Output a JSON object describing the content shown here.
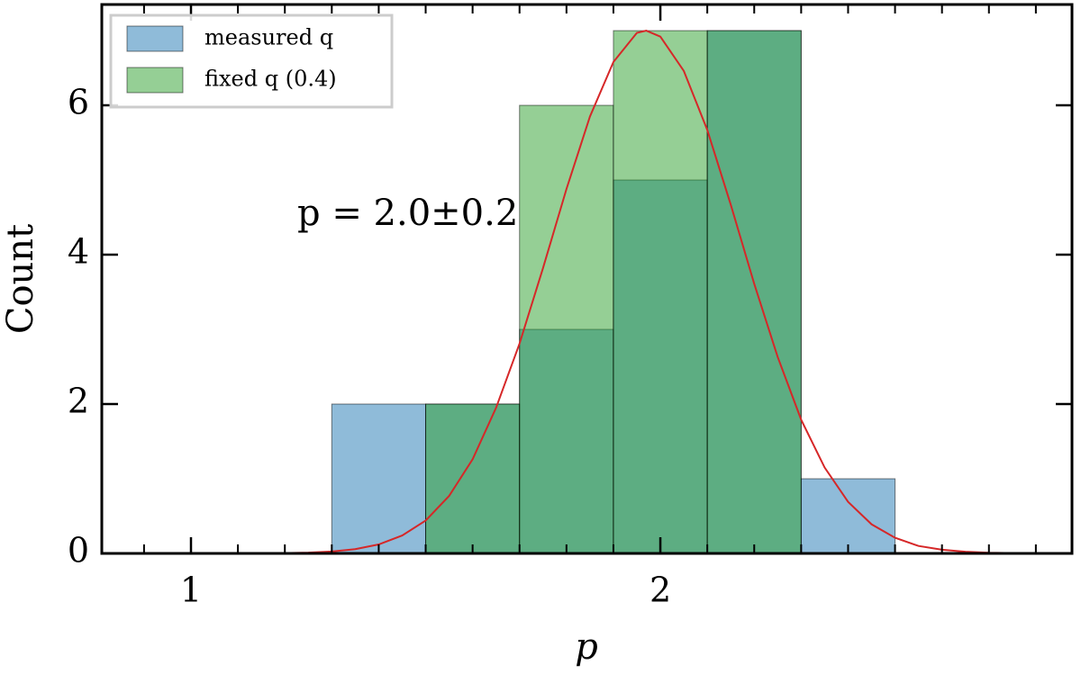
{
  "chart_data": {
    "type": "histogram",
    "xlabel": "p",
    "ylabel": "Count",
    "bins": [
      1.3,
      1.5,
      1.7,
      1.9,
      2.1,
      2.3,
      2.5
    ],
    "series": [
      {
        "name": "measured q",
        "color": "#1f77b4",
        "values": [
          2,
          2,
          3,
          5,
          7,
          1
        ]
      },
      {
        "name": "fixed q (0.4)",
        "color": "#2ca02c",
        "values": [
          0,
          2,
          6,
          7,
          7,
          0
        ]
      }
    ],
    "alpha": 0.5,
    "fit": {
      "color": "#d62728",
      "x": [
        1.2,
        1.25,
        1.3,
        1.35,
        1.4,
        1.45,
        1.5,
        1.55,
        1.6,
        1.65,
        1.7,
        1.75,
        1.8,
        1.85,
        1.9,
        1.95,
        1.97,
        2.0,
        2.05,
        2.1,
        2.15,
        2.2,
        2.25,
        2.3,
        2.35,
        2.4,
        2.45,
        2.5,
        2.55,
        2.6,
        2.65,
        2.7,
        2.75,
        2.8
      ],
      "values": [
        0.004,
        0.011,
        0.026,
        0.057,
        0.12,
        0.24,
        0.44,
        0.77,
        1.26,
        1.95,
        2.81,
        3.82,
        4.88,
        5.85,
        6.58,
        6.97,
        7.0,
        6.92,
        6.46,
        5.67,
        4.67,
        3.61,
        2.63,
        1.79,
        1.15,
        0.69,
        0.39,
        0.21,
        0.1,
        0.05,
        0.022,
        0.009,
        0.004,
        0.001
      ]
    },
    "annotation": {
      "text": "p = 2.0±0.2",
      "color": "#d62728"
    },
    "xlim": [
      0.81,
      2.877
    ],
    "ylim": [
      0,
      7.35
    ],
    "xticks": [
      1,
      2
    ],
    "xticks_minor": [
      0.9,
      1.1,
      1.2,
      1.3,
      1.4,
      1.5,
      1.6,
      1.7,
      1.8,
      1.9,
      2.1,
      2.2,
      2.3,
      2.4,
      2.5,
      2.6,
      2.7,
      2.8
    ],
    "yticks": [
      0,
      2,
      4,
      6
    ],
    "legend_loc": "upper left"
  }
}
